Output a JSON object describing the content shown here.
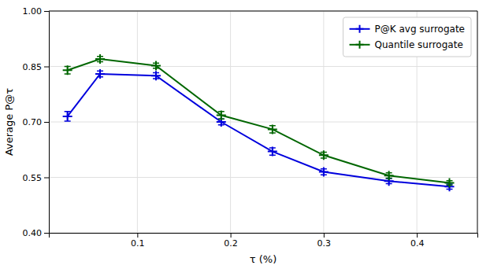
{
  "chart_data": {
    "type": "line",
    "xlabel": "τ (%)",
    "ylabel": "Average P@τ",
    "x": [
      0.025,
      0.06,
      0.12,
      0.19,
      0.245,
      0.3,
      0.37,
      0.435
    ],
    "series": [
      {
        "name": "P@K avg surrogate",
        "color": "#0000dd",
        "marker": "plus",
        "values": [
          0.715,
          0.83,
          0.825,
          0.7,
          0.62,
          0.565,
          0.54,
          0.525
        ],
        "errors": [
          0.013,
          0.008,
          0.008,
          0.008,
          0.01,
          0.008,
          0.007,
          0.007
        ]
      },
      {
        "name": "Quantile surrogate",
        "color": "#006600",
        "marker": "plus",
        "values": [
          0.84,
          0.87,
          0.852,
          0.718,
          0.68,
          0.61,
          0.555,
          0.535
        ],
        "errors": [
          0.01,
          0.007,
          0.007,
          0.01,
          0.01,
          0.008,
          0.007,
          0.006
        ]
      }
    ],
    "xlim": [
      0.005,
      0.465
    ],
    "ylim": [
      0.4,
      1.0
    ],
    "xticks": [
      0.1,
      0.2,
      0.3,
      0.4
    ],
    "yticks": [
      {
        "value": 0.4,
        "label": "0.40"
      },
      0.55,
      {
        "value": 0.7,
        "label": "0.70"
      },
      0.85,
      {
        "value": 1.0,
        "label": "1.00"
      }
    ],
    "grid": true,
    "legend": "upper right"
  }
}
